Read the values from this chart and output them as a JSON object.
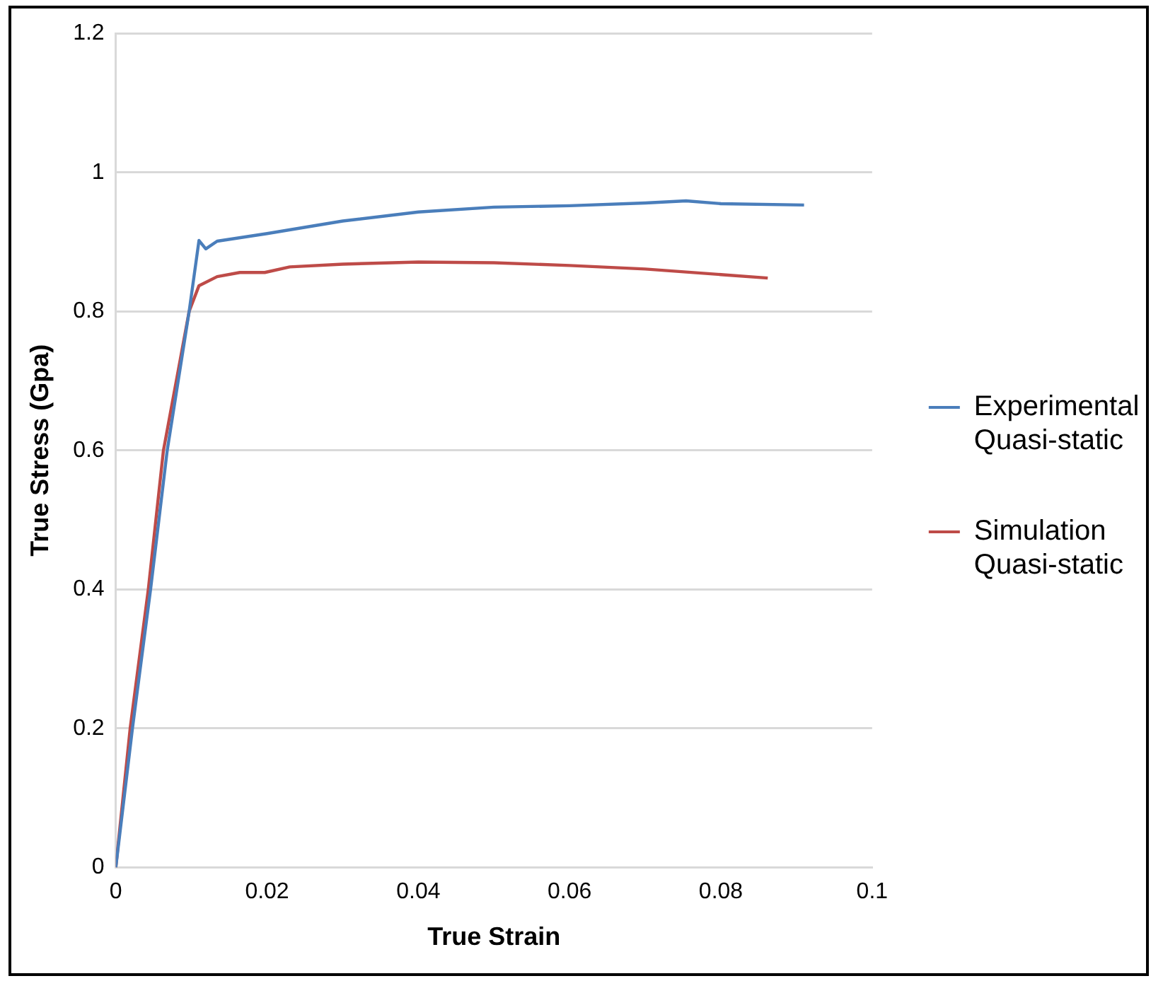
{
  "chart_data": {
    "type": "line",
    "xlabel": "True Strain",
    "ylabel": "True Stress (Gpa)",
    "xlim": [
      0,
      0.1
    ],
    "xticks": [
      0,
      0.02,
      0.04,
      0.06,
      0.08,
      0.1
    ],
    "ylim": [
      0,
      1.2
    ],
    "yticks": [
      0,
      0.2,
      0.4,
      0.6,
      0.8,
      1,
      1.2
    ],
    "grid": "y",
    "legend": "right",
    "marker": "none",
    "line_style": "solid",
    "series": [
      {
        "name": "Experimental Quasi-static",
        "color": "#4a7ebb",
        "x": [
          0,
          0.0022,
          0.0046,
          0.0068,
          0.0097,
          0.011,
          0.0119,
          0.0134,
          0.02,
          0.03,
          0.04,
          0.05,
          0.06,
          0.07,
          0.0754,
          0.08,
          0.091
        ],
        "values": [
          0,
          0.2,
          0.4,
          0.6,
          0.8,
          0.902,
          0.89,
          0.901,
          0.912,
          0.93,
          0.943,
          0.95,
          0.952,
          0.956,
          0.959,
          0.955,
          0.953
        ]
      },
      {
        "name": "Simulation Quasi-static",
        "color": "#be4b48",
        "x": [
          0,
          0.0019,
          0.0043,
          0.0063,
          0.0097,
          0.011,
          0.0134,
          0.0164,
          0.0197,
          0.023,
          0.03,
          0.04,
          0.05,
          0.06,
          0.07,
          0.08,
          0.0862
        ],
        "values": [
          0,
          0.2,
          0.4,
          0.6,
          0.8,
          0.837,
          0.85,
          0.856,
          0.856,
          0.864,
          0.868,
          0.871,
          0.87,
          0.866,
          0.861,
          0.853,
          0.848
        ]
      }
    ]
  }
}
